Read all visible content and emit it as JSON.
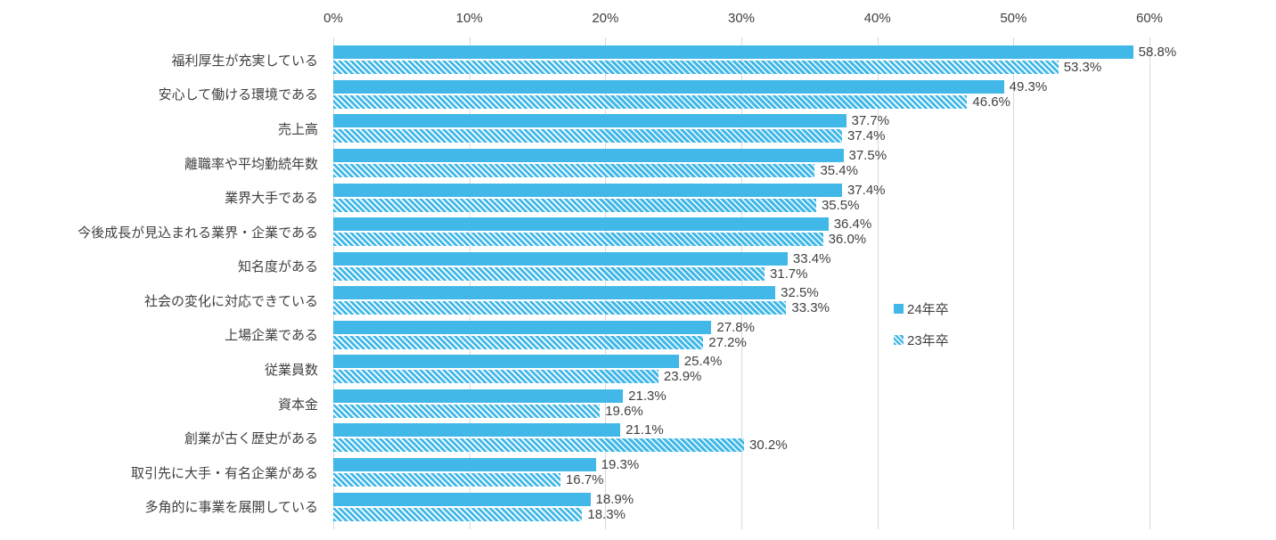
{
  "colors": {
    "bar": "#41b8e8",
    "grid": "#d9d9d9",
    "text": "#404040"
  },
  "chart_data": {
    "type": "bar",
    "orientation": "horizontal",
    "title": "",
    "xlabel": "",
    "ylabel": "",
    "xlim": [
      0,
      60
    ],
    "grid": true,
    "legend_position": "right-middle",
    "x_ticks": [
      "0%",
      "10%",
      "20%",
      "30%",
      "40%",
      "50%",
      "60%"
    ],
    "x_tick_values": [
      0,
      10,
      20,
      30,
      40,
      50,
      60
    ],
    "categories": [
      "福利厚生が充実している",
      "安心して働ける環境である",
      "売上高",
      "離職率や平均勤続年数",
      "業界大手である",
      "今後成長が見込まれる業界・企業である",
      "知名度がある",
      "社会の変化に対応できている",
      "上場企業である",
      "従業員数",
      "資本金",
      "創業が古く歴史がある",
      "取引先に大手・有名企業がある",
      "多角的に事業を展開している"
    ],
    "series": [
      {
        "name": "24年卒",
        "style": "solid",
        "values": [
          58.8,
          49.3,
          37.7,
          37.5,
          37.4,
          36.4,
          33.4,
          32.5,
          27.8,
          25.4,
          21.3,
          21.1,
          19.3,
          18.9
        ]
      },
      {
        "name": "23年卒",
        "style": "hatched",
        "values": [
          53.3,
          46.6,
          37.4,
          35.4,
          35.5,
          36.0,
          31.7,
          33.3,
          27.2,
          23.9,
          19.6,
          30.2,
          16.7,
          18.3
        ]
      }
    ],
    "value_label_format": "0.0%"
  }
}
